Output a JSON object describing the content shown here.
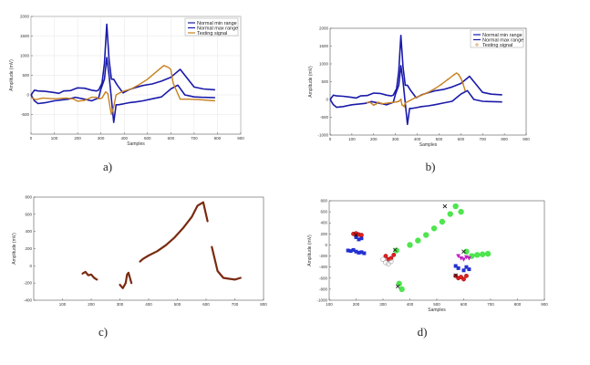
{
  "chart_data": [
    {
      "id": "a",
      "panel_label": "a)",
      "type": "line",
      "xlabel": "Samples",
      "ylabel": "Amplitude (mV)",
      "xlim": [
        0,
        900
      ],
      "ylim": [
        -1000,
        2000
      ],
      "xticks": [
        0,
        100,
        200,
        300,
        400,
        500,
        600,
        700,
        800,
        900
      ],
      "yticks": [
        -500,
        0,
        500,
        1000,
        1500,
        2000
      ],
      "grid": true,
      "legend": {
        "position": "top-right",
        "entries": [
          "Normal min range",
          "Normal max range",
          "Testing signal"
        ]
      },
      "series": [
        {
          "name": "Normal min range",
          "color": "#1a1aaa",
          "width": 1.6,
          "x": [
            0,
            15,
            30,
            60,
            100,
            130,
            160,
            190,
            230,
            260,
            290,
            300,
            315,
            325,
            335,
            345,
            355,
            365,
            375,
            395,
            420,
            450,
            480,
            520,
            560,
            600,
            630,
            660,
            700,
            730,
            790
          ],
          "y": [
            0,
            -150,
            -220,
            -200,
            -150,
            -130,
            -110,
            -60,
            -110,
            -150,
            -80,
            150,
            400,
            950,
            500,
            -100,
            -700,
            -250,
            -250,
            -230,
            -200,
            -180,
            -150,
            -100,
            -50,
            150,
            250,
            0,
            -50,
            -60,
            -70
          ]
        },
        {
          "name": "Normal max range",
          "color": "#1a1aaa",
          "width": 1.6,
          "x": [
            0,
            15,
            30,
            60,
            100,
            120,
            140,
            170,
            200,
            230,
            260,
            280,
            290,
            305,
            315,
            325,
            335,
            345,
            355,
            370,
            395,
            420,
            450,
            480,
            520,
            560,
            600,
            640,
            700,
            740,
            790
          ],
          "y": [
            0,
            120,
            100,
            90,
            60,
            40,
            100,
            110,
            180,
            170,
            120,
            100,
            120,
            300,
            800,
            1800,
            900,
            400,
            400,
            250,
            50,
            130,
            190,
            240,
            280,
            350,
            450,
            650,
            200,
            150,
            130
          ]
        },
        {
          "name": "Testing signal",
          "color": "#c8801e",
          "width": 1.4,
          "x": [
            0,
            20,
            50,
            80,
            100,
            120,
            150,
            180,
            200,
            230,
            260,
            280,
            290,
            305,
            320,
            330,
            340,
            345,
            355,
            365,
            380,
            400,
            430,
            460,
            500,
            540,
            570,
            590,
            600,
            610,
            640,
            680,
            720,
            790
          ],
          "y": [
            -60,
            -120,
            -80,
            -90,
            -100,
            -90,
            -80,
            -100,
            -160,
            -140,
            -60,
            -60,
            -100,
            -80,
            80,
            30,
            -350,
            -500,
            -300,
            0,
            50,
            100,
            150,
            250,
            400,
            600,
            750,
            700,
            650,
            300,
            -110,
            -110,
            -120,
            -150
          ]
        }
      ]
    },
    {
      "id": "b",
      "panel_label": "b)",
      "type": "line",
      "xlabel": "Samples",
      "ylabel": "Amplitude (mV)",
      "xlim": [
        0,
        900
      ],
      "ylim": [
        -1000,
        2000
      ],
      "xticks": [
        0,
        100,
        200,
        300,
        400,
        500,
        600,
        700,
        800,
        900
      ],
      "yticks": [
        -1000,
        -500,
        0,
        500,
        1000,
        1500,
        2000
      ],
      "grid": false,
      "legend": {
        "position": "top-right",
        "entries": [
          "Normal min range",
          "Normal max range",
          "Testing signal"
        ]
      },
      "series": [
        {
          "name": "Normal min range",
          "color": "#1a1aaa",
          "width": 1.6,
          "x": [
            0,
            15,
            30,
            60,
            100,
            130,
            160,
            190,
            230,
            260,
            290,
            300,
            315,
            325,
            335,
            345,
            355,
            365,
            375,
            395,
            420,
            450,
            480,
            520,
            560,
            600,
            630,
            660,
            700,
            730,
            790
          ],
          "y": [
            0,
            -150,
            -220,
            -200,
            -150,
            -130,
            -110,
            -60,
            -110,
            -150,
            -80,
            150,
            400,
            950,
            500,
            -100,
            -700,
            -250,
            -250,
            -230,
            -200,
            -180,
            -150,
            -100,
            -50,
            150,
            250,
            0,
            -50,
            -60,
            -70
          ]
        },
        {
          "name": "Normal max range",
          "color": "#1a1aaa",
          "width": 1.6,
          "x": [
            0,
            15,
            30,
            60,
            100,
            120,
            140,
            170,
            200,
            230,
            260,
            280,
            290,
            305,
            315,
            325,
            335,
            345,
            355,
            370,
            395,
            420,
            450,
            480,
            520,
            560,
            600,
            640,
            700,
            740,
            790
          ],
          "y": [
            0,
            120,
            100,
            90,
            60,
            40,
            100,
            110,
            180,
            170,
            120,
            100,
            120,
            300,
            800,
            1800,
            900,
            400,
            400,
            250,
            50,
            130,
            190,
            240,
            280,
            350,
            450,
            650,
            200,
            150,
            130
          ]
        },
        {
          "name": "Testing signal",
          "color": "#c8801e",
          "width": 1.4,
          "markers": "points-between-bounds",
          "x": [
            170,
            180,
            190,
            200,
            210,
            220,
            230,
            240,
            305,
            315,
            325,
            330,
            340,
            345,
            390,
            420,
            450,
            480,
            510,
            540,
            570,
            580,
            590,
            600,
            610,
            620
          ],
          "y": [
            -90,
            -70,
            -110,
            -160,
            -130,
            -80,
            -100,
            -120,
            -70,
            -50,
            0,
            -150,
            -200,
            -100,
            50,
            120,
            200,
            300,
            420,
            560,
            700,
            740,
            700,
            600,
            450,
            250
          ]
        }
      ]
    },
    {
      "id": "c",
      "panel_label": "c)",
      "type": "scatter",
      "xlabel": "",
      "ylabel": "Amplitude (mV)",
      "xlim": [
        0,
        800
      ],
      "ylim": [
        -400,
        800
      ],
      "xticks": [
        100,
        200,
        300,
        400,
        500,
        600,
        700,
        800
      ],
      "yticks": [
        -400,
        -200,
        0,
        200,
        400,
        600,
        800
      ],
      "grid": false,
      "series": [
        {
          "name": "",
          "color": "#7a2a10",
          "segments": [
            {
              "x": [
                170,
                180,
                190,
                200,
                210,
                220
              ],
              "y": [
                -90,
                -70,
                -110,
                -100,
                -140,
                -160
              ]
            },
            {
              "x": [
                300,
                310,
                320,
                325,
                330,
                335,
                340
              ],
              "y": [
                -220,
                -260,
                -200,
                -100,
                -80,
                -140,
                -200
              ]
            },
            {
              "x": [
                370,
                380,
                400,
                430,
                460,
                490,
                520,
                550,
                570,
                590,
                605
              ],
              "y": [
                50,
                80,
                120,
                170,
                240,
                330,
                440,
                570,
                700,
                740,
                520
              ]
            },
            {
              "x": [
                620,
                640,
                660,
                680,
                700,
                720
              ],
              "y": [
                220,
                -60,
                -140,
                -150,
                -160,
                -140
              ]
            }
          ]
        }
      ]
    },
    {
      "id": "d",
      "panel_label": "d)",
      "type": "scatter",
      "xlabel": "Samples",
      "ylabel": "Amplitude (mV)",
      "xlim": [
        100,
        900
      ],
      "ylim": [
        -1000,
        800
      ],
      "xticks": [
        100,
        200,
        300,
        400,
        500,
        600,
        700,
        800,
        900
      ],
      "yticks": [
        -1000,
        -800,
        -600,
        -400,
        -200,
        0,
        200,
        400,
        600,
        800
      ],
      "grid": false,
      "clusters": [
        {
          "color": "#2230d0",
          "marker": "square",
          "x": [
            170,
            180,
            190,
            200,
            210,
            220,
            230,
            200,
            210,
            220
          ],
          "y": [
            -100,
            -110,
            -90,
            -120,
            -140,
            -130,
            -150,
            140,
            100,
            120
          ]
        },
        {
          "color": "#e02020",
          "marker": "circle",
          "x": [
            190,
            200,
            210,
            220,
            310,
            320,
            330,
            340,
            570,
            580,
            590,
            600,
            610
          ],
          "y": [
            200,
            210,
            190,
            180,
            -200,
            -260,
            -240,
            -180,
            -560,
            -600,
            -580,
            -620,
            -560
          ]
        },
        {
          "color": "#aaaaaa",
          "marker": "circle-open",
          "x": [
            300,
            310,
            320,
            330
          ],
          "y": [
            -260,
            -320,
            -340,
            -300
          ]
        },
        {
          "color": "#2fe02f",
          "marker": "star",
          "x": [
            350,
            360,
            370,
            400,
            430,
            460,
            490,
            520,
            550,
            570,
            590,
            610,
            630,
            650,
            670,
            690
          ],
          "y": [
            -100,
            -700,
            -800,
            0,
            80,
            180,
            300,
            420,
            560,
            700,
            600,
            -120,
            -200,
            -180,
            -170,
            -160
          ]
        },
        {
          "color": "#c020c0",
          "marker": "triangle",
          "x": [
            580,
            590,
            600,
            610,
            620
          ],
          "y": [
            -200,
            -240,
            -260,
            -220,
            -240
          ]
        },
        {
          "color": "#2230d0",
          "marker": "square",
          "x": [
            570,
            580,
            600,
            610,
            620
          ],
          "y": [
            -380,
            -420,
            -460,
            -400,
            -440
          ]
        }
      ],
      "centroids": {
        "color": "#111111",
        "marker": "x",
        "x": [
          200,
          345,
          355,
          530,
          570,
          600
        ],
        "y": [
          180,
          -90,
          -750,
          700,
          -550,
          -120
        ]
      }
    }
  ]
}
